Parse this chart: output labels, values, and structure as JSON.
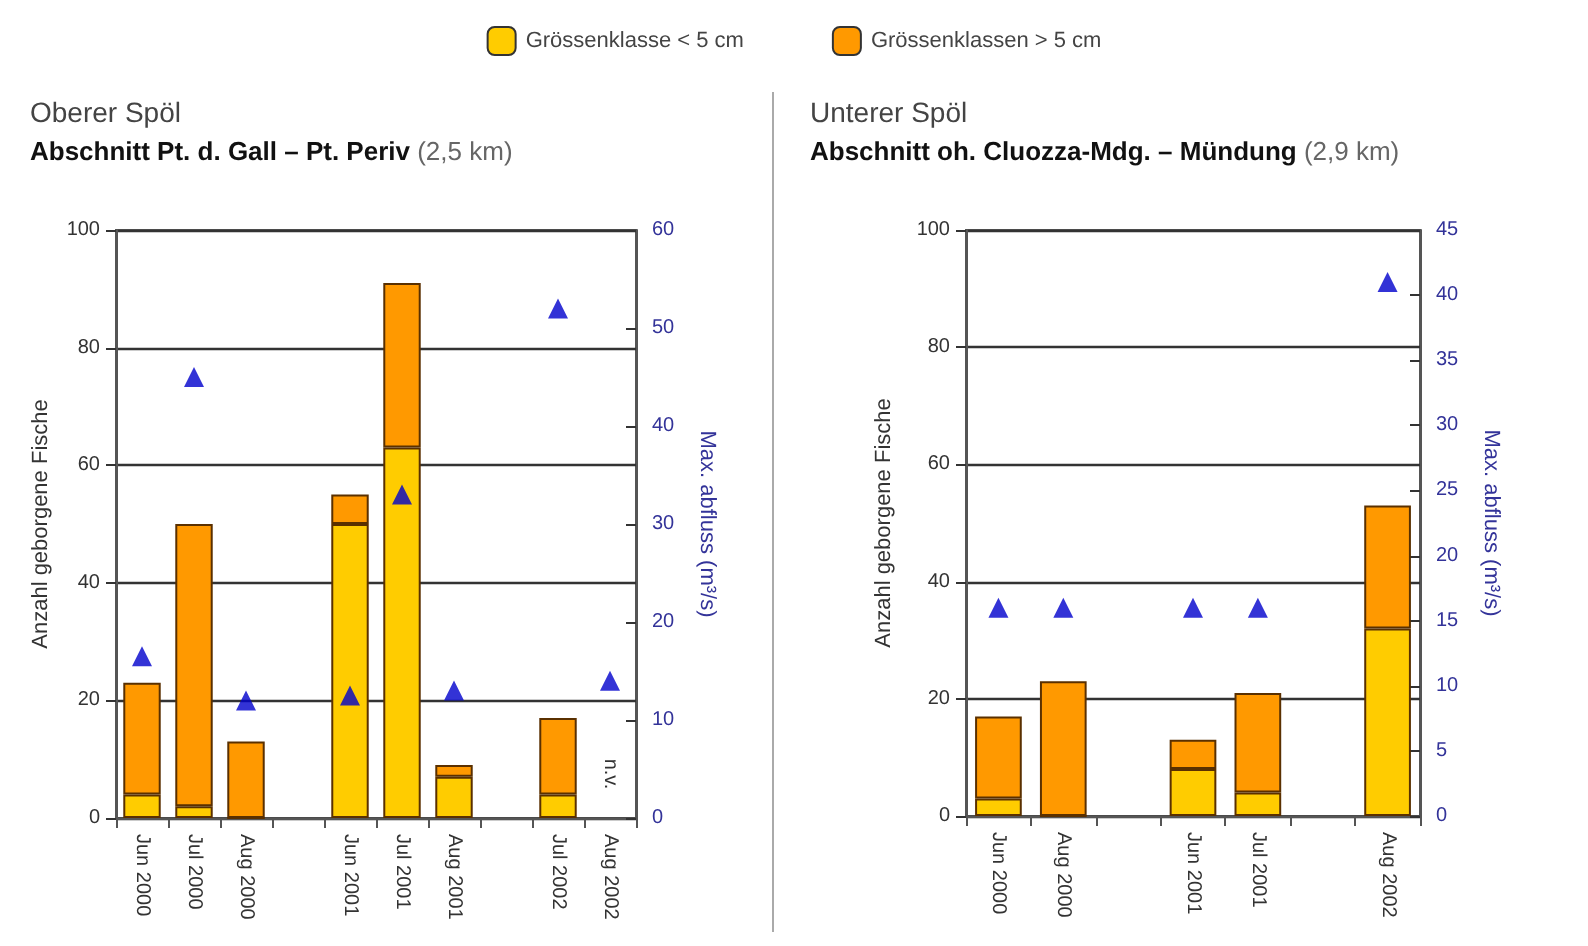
{
  "chart_data": [
    {
      "type": "bar",
      "title": "Oberer Spöl",
      "subtitle": "Abschnitt Pt. d. Gall – Pt. Periv (2,5 km)",
      "ylabel": "Anzahl geborgene Fische",
      "y2label": "Max. abfluss (m³/s)",
      "categories": [
        "Jun 2000",
        "Jul 2000",
        "Aug 2000",
        null,
        "Jun 2001",
        "Jul 2001",
        "Aug 2001",
        null,
        "Jul 2002",
        "Aug 2002"
      ],
      "stacked": true,
      "legend": "top",
      "grid": "y",
      "marker": "triangle",
      "ylim": [
        0,
        100
      ],
      "yticks": [
        0,
        20,
        40,
        60,
        80,
        100
      ],
      "y2lim": [
        0,
        60
      ],
      "y2ticks": [
        0,
        10,
        20,
        30,
        40,
        50,
        60
      ],
      "annotations": [
        "n.v."
      ],
      "series": [
        {
          "name": "Grössenklasse < 5 cm",
          "color": "#ffcc00",
          "values": [
            4,
            2,
            0,
            null,
            50,
            63,
            7,
            null,
            4,
            null
          ]
        },
        {
          "name": "Grössenklassen > 5 cm",
          "color": "#ff9900",
          "values": [
            19,
            48,
            13,
            null,
            5,
            28,
            2,
            null,
            13,
            null
          ]
        },
        {
          "type": "scatter",
          "axis": "y2",
          "color": "#0000cc",
          "values": [
            16.5,
            45,
            12,
            null,
            12.5,
            33,
            13,
            null,
            52,
            14
          ]
        }
      ]
    },
    {
      "type": "bar",
      "title": "Unterer Spöl",
      "subtitle": "Abschnitt oh. Cluozza-Mdg. – Mündung (2,9 km)",
      "ylabel": "Anzahl geborgene Fische",
      "y2label": "Max. abfluss (m³/s)",
      "categories": [
        "Jun 2000",
        "Aug 2000",
        null,
        "Jun 2001",
        "Jul 2001",
        null,
        "Aug 2002"
      ],
      "stacked": true,
      "grid": "y",
      "marker": "triangle",
      "ylim": [
        0,
        100
      ],
      "yticks": [
        0,
        20,
        40,
        60,
        80,
        100
      ],
      "y2lim": [
        0,
        45
      ],
      "y2ticks": [
        0,
        5,
        10,
        15,
        20,
        25,
        30,
        35,
        40,
        45
      ],
      "series": [
        {
          "color": "#ffcc00",
          "values": [
            3,
            0,
            null,
            8,
            4,
            null,
            32
          ]
        },
        {
          "color": "#ff9900",
          "values": [
            14,
            23,
            null,
            5,
            17,
            null,
            21
          ]
        },
        {
          "type": "scatter",
          "axis": "y2",
          "color": "#0000cc",
          "values": [
            16,
            16,
            null,
            16,
            16,
            null,
            41
          ]
        }
      ]
    }
  ]
}
